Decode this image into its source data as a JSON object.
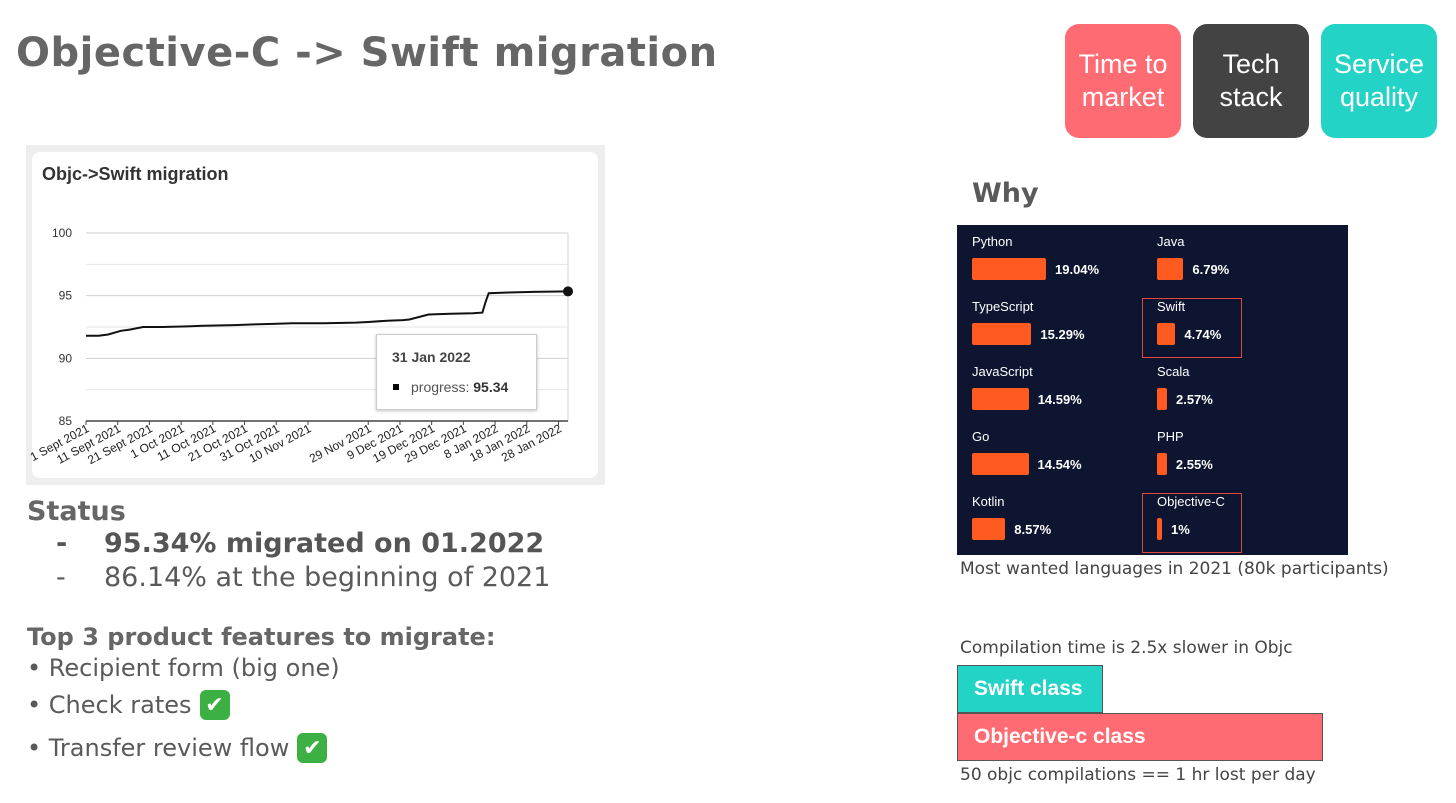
{
  "slide": {
    "title": "Objective-C -> Swift migration"
  },
  "tags": [
    {
      "label": "Time to\nmarket",
      "color": "#ff6b72"
    },
    {
      "label": "Tech\nstack",
      "color": "#434343"
    },
    {
      "label": "Service\nquality",
      "color": "#23d3c6"
    }
  ],
  "chart_data": [
    {
      "type": "line",
      "title": "Objc->Swift migration",
      "categories": [
        "1 Sept 2021",
        "11 Sept 2021",
        "21 Sept 2021",
        "1 Oct 2021",
        "11 Oct 2021",
        "21 Oct 2021",
        "31 Oct 2021",
        "10 Nov 2021",
        "29 Nov 2021",
        "9 Dec 2021",
        "19 Dec 2021",
        "29 Dec 2021",
        "8 Jan 2022",
        "18 Jan 2022",
        "28 Jan 2022"
      ],
      "series": [
        {
          "x": [
            "1 Sept 2021",
            "5 Sept 2021",
            "8 Sept 2021",
            "12 Sept 2021",
            "15 Sept 2021",
            "19 Sept 2021",
            "25 Sept 2021",
            "3 Oct 2021",
            "8 Oct 2021",
            "18 Oct 2021",
            "23 Oct 2021",
            "30 Oct 2021",
            "5 Nov 2021",
            "15 Nov 2021",
            "25 Nov 2021",
            "29 Nov 2021",
            "5 Dec 2021",
            "10 Dec 2021",
            "12 Dec 2021",
            "18 Dec 2021",
            "25 Dec 2021",
            "1 Jan 2022",
            "4 Jan 2022",
            "5 Jan 2022",
            "6 Jan 2022",
            "12 Jan 2022",
            "20 Jan 2022",
            "31 Jan 2022"
          ],
          "values": [
            91.8,
            91.8,
            91.9,
            92.2,
            92.3,
            92.5,
            92.5,
            92.55,
            92.6,
            92.65,
            92.7,
            92.75,
            92.8,
            92.8,
            92.85,
            92.9,
            93.0,
            93.05,
            93.1,
            93.5,
            93.55,
            93.6,
            93.65,
            94.5,
            95.2,
            95.25,
            95.3,
            95.34
          ]
        }
      ],
      "ylim": [
        85,
        100
      ],
      "yticks": [
        85,
        90,
        95,
        100
      ],
      "grid": true,
      "tooltip": {
        "date": "31 Jan 2022",
        "label": "progress: ",
        "value": "95.34"
      }
    },
    {
      "type": "bar",
      "caption": "Most wanted languages in 2021 (80k participants)",
      "categories": [
        "Python",
        "TypeScript",
        "JavaScript",
        "Go",
        "Kotlin",
        "Java",
        "Swift",
        "Scala",
        "PHP",
        "Objective-C"
      ],
      "values": [
        19.04,
        15.29,
        14.59,
        14.54,
        8.57,
        6.79,
        4.74,
        2.57,
        2.55,
        1
      ],
      "labels": [
        "19.04%",
        "15.29%",
        "14.59%",
        "14.54%",
        "8.57%",
        "6.79%",
        "4.74%",
        "2.57%",
        "2.55%",
        "1%"
      ],
      "highlighted": [
        "Swift",
        "Objective-C"
      ],
      "bar_color": "#ff5a1f"
    },
    {
      "type": "bar",
      "caption": "Compilation time is 2.5x slower in Objc",
      "categories": [
        "Swift class",
        "Objective-c class"
      ],
      "values": [
        1,
        2.5
      ],
      "colors": [
        "#23d3c6",
        "#ff6b72"
      ],
      "footer": "50 objc compilations == 1 hr lost per day"
    }
  ],
  "status": {
    "heading": "Status",
    "dash": "-",
    "items": [
      "95.34% migrated on 01.2022",
      "86.14% at the beginning of 2021"
    ]
  },
  "features": {
    "heading": "Top 3 product features to migrate:",
    "items": [
      {
        "label": "• Recipient form (big one)",
        "done": false
      },
      {
        "label": "• Check rates",
        "done": true
      },
      {
        "label": "• Transfer review flow",
        "done": true
      }
    ],
    "check_glyph": "✔"
  },
  "why": {
    "heading": "Why"
  }
}
